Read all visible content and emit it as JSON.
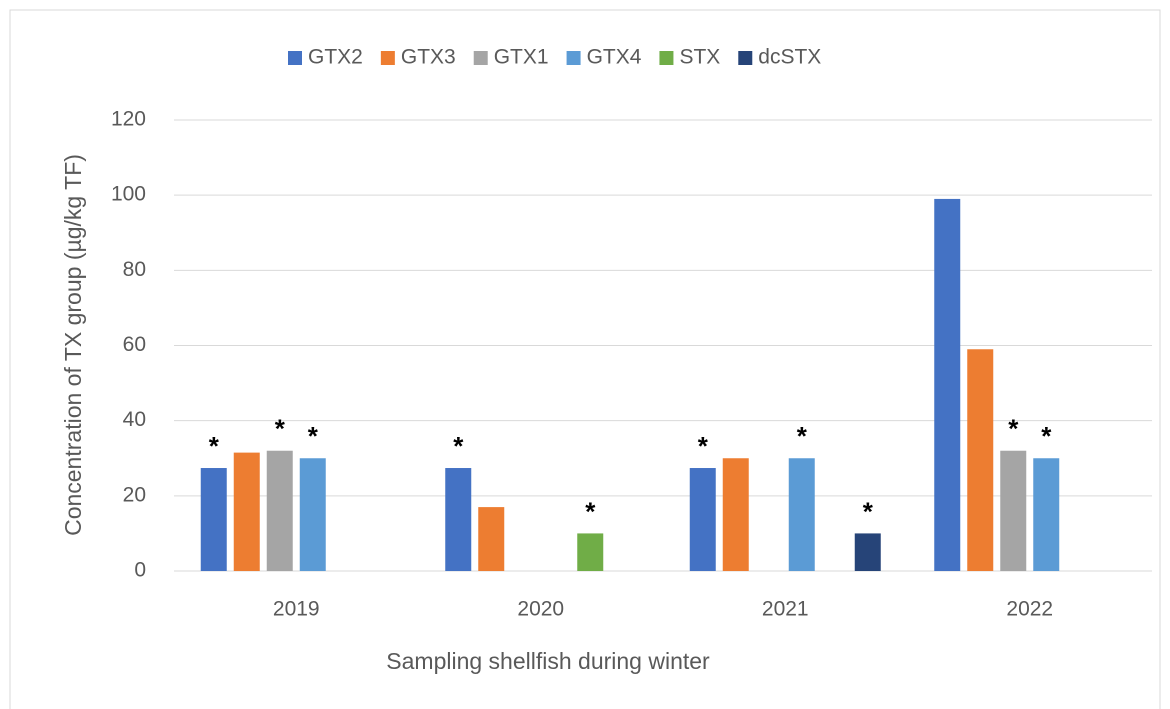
{
  "chart_data": {
    "type": "bar",
    "x_label": "Sampling shellfish during winter",
    "y_label": "Concentration of TX group (µg/kg TF)",
    "categories": [
      "2019",
      "2020",
      "2021",
      "2022"
    ],
    "series": [
      {
        "name": "GTX2",
        "color": "#4472c4",
        "values": [
          27.4,
          27.4,
          27.4,
          99
        ]
      },
      {
        "name": "GTX3",
        "color": "#ed7d31",
        "values": [
          31.5,
          17,
          30,
          59
        ]
      },
      {
        "name": "GTX1",
        "color": "#a5a5a5",
        "values": [
          32,
          null,
          null,
          32
        ]
      },
      {
        "name": "GTX4",
        "color": "#5b9bd5",
        "values": [
          30,
          null,
          30,
          30
        ]
      },
      {
        "name": "STX",
        "color": "#70ad47",
        "values": [
          null,
          10,
          null,
          null
        ]
      },
      {
        "name": "dcSTX",
        "color": "#264478",
        "values": [
          null,
          null,
          10,
          null
        ]
      }
    ],
    "annotations": [
      {
        "text": "*",
        "series": 0,
        "category": 0
      },
      {
        "text": "*",
        "series": 2,
        "category": 0
      },
      {
        "text": "*",
        "series": 3,
        "category": 0
      },
      {
        "text": "*",
        "series": 0,
        "category": 1
      },
      {
        "text": "*",
        "series": 4,
        "category": 1
      },
      {
        "text": "*",
        "series": 0,
        "category": 2
      },
      {
        "text": "*",
        "series": 3,
        "category": 2
      },
      {
        "text": "*",
        "series": 5,
        "category": 2
      },
      {
        "text": "*",
        "series": 2,
        "category": 3
      },
      {
        "text": "*",
        "series": 3,
        "category": 3
      }
    ],
    "ylim": [
      0,
      120
    ],
    "yticks": [
      0,
      20,
      40,
      60,
      80,
      100,
      120
    ],
    "grid": true,
    "legend": "top"
  }
}
